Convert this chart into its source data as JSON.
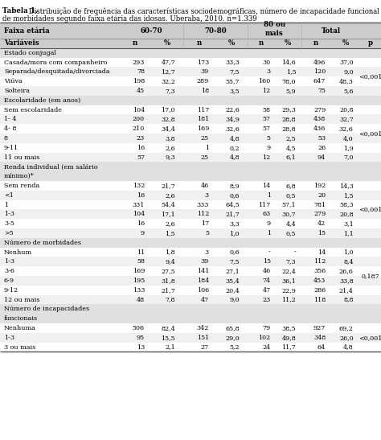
{
  "title_bold": "Tabela 1.",
  "title_rest": " Distribuição de frequência das características sociodemográficas, número de incapacidade funcional e\nde morbidades segundo faixa etária das idosas. Uberaba, 2010. n=1.339",
  "col_headers_row1": [
    "Faixa etária",
    "60-70",
    "70-80",
    "80 ou\nmais",
    "Total"
  ],
  "col_headers_row2": [
    "Variáveis",
    "n",
    "%",
    "n",
    "%",
    "n",
    "%",
    "n",
    "%",
    "p"
  ],
  "sections": [
    {
      "label": "Estado conjugal",
      "label_lines": 1,
      "p_value": "<0,001",
      "p_row": 1,
      "rows": [
        [
          "Casada/mora com companheiro",
          "293",
          "47,7",
          "173",
          "33,3",
          "30",
          "14,6",
          "496",
          "37,0"
        ],
        [
          "Separada/desquitada/divorciada",
          "78",
          "12,7",
          "39",
          "7,5",
          "3",
          "1,5",
          "120",
          "9,0"
        ],
        [
          "Viúva",
          "198",
          "32,2",
          "289",
          "55,7",
          "160",
          "78,0",
          "647",
          "48,3"
        ],
        [
          "Solteira",
          "45",
          "7,3",
          "18",
          "3,5",
          "12",
          "5,9",
          "75",
          "5,6"
        ]
      ]
    },
    {
      "label": "Escolaridade (em anos)",
      "label_lines": 1,
      "p_value": "<0,001",
      "p_row": 2,
      "rows": [
        [
          "Sem escolaridade",
          "104",
          "17,0",
          "117",
          "22,6",
          "58",
          "29,3",
          "279",
          "20,8"
        ],
        [
          "1- 4",
          "200",
          "32,8",
          "181",
          "34,9",
          "57",
          "28,8",
          "438",
          "32,7"
        ],
        [
          "4- 8",
          "210",
          "34,4",
          "169",
          "32,6",
          "57",
          "28,8",
          "436",
          "32,6"
        ],
        [
          "8",
          "23",
          "3,8",
          "25",
          "4,8",
          "5",
          "2,5",
          "53",
          "4,0"
        ],
        [
          "9-11",
          "16",
          "2,6",
          "1",
          "0,2",
          "9",
          "4,5",
          "26",
          "1,9"
        ],
        [
          "11 ou mais",
          "57",
          "9,3",
          "25",
          "4,8",
          "12",
          "6,1",
          "94",
          "7,0"
        ]
      ]
    },
    {
      "label": "Renda individual (em salário\nmínimo)*",
      "label_lines": 2,
      "p_value": "<0,001",
      "p_row": 1,
      "rows": [
        [
          "Sem renda",
          "132",
          "21,7",
          "46",
          "8,9",
          "14",
          "6,8",
          "192",
          "14,3"
        ],
        [
          "<1",
          "16",
          "2,6",
          "3",
          "0,6",
          "1",
          "0,5",
          "20",
          "1,5"
        ],
        [
          "1",
          "331",
          "54,4",
          "333",
          "64,5",
          "117",
          "57,1",
          "781",
          "58,3"
        ],
        [
          "1-3",
          "104",
          "17,1",
          "112",
          "21,7",
          "63",
          "30,7",
          "279",
          "20,8"
        ],
        [
          "3-5",
          "16",
          "2,6",
          "17",
          "3,3",
          "9",
          "4,4",
          "42",
          "3,1"
        ],
        [
          ">5",
          "9",
          "1,5",
          "5",
          "1,0",
          "1",
          "0,5",
          "15",
          "1,1"
        ]
      ]
    },
    {
      "label": "Número de morbidades",
      "label_lines": 1,
      "p_value": "0,187",
      "p_row": 2,
      "rows": [
        [
          "Nenhum",
          "11",
          "1,8",
          "3",
          "0,6",
          "-",
          "-",
          "14",
          "1,0"
        ],
        [
          "1-3",
          "58",
          "9,4",
          "39",
          "7,5",
          "15",
          "7,3",
          "112",
          "8,4"
        ],
        [
          "3-6",
          "169",
          "27,5",
          "141",
          "27,1",
          "46",
          "22,4",
          "356",
          "26,6"
        ],
        [
          "6-9",
          "195",
          "31,8",
          "184",
          "35,4",
          "74",
          "36,1",
          "453",
          "33,8"
        ],
        [
          "9-12",
          "133",
          "21,7",
          "106",
          "20,4",
          "47",
          "22,9",
          "286",
          "21,4"
        ],
        [
          "12 ou mais",
          "48",
          "7,8",
          "47",
          "9,0",
          "23",
          "11,2",
          "118",
          "8,8"
        ]
      ]
    },
    {
      "label": "Número de incapacidades\nfuncionais",
      "label_lines": 2,
      "p_value": "<0,001",
      "p_row": 0,
      "rows": [
        [
          "Nenhuma",
          "506",
          "82,4",
          "342",
          "65,8",
          "79",
          "38,5",
          "927",
          "69,2"
        ],
        [
          "1-3",
          "95",
          "15,5",
          "151",
          "29,0",
          "102",
          "49,8",
          "348",
          "26,0"
        ],
        [
          "3 ou mais",
          "13",
          "2,1",
          "27",
          "5,2",
          "24",
          "11,7",
          "64",
          "4,8"
        ]
      ]
    }
  ],
  "bg_header": "#cccccc",
  "bg_section": "#e0e0e0",
  "bg_white": "#ffffff",
  "bg_light": "#f0f0f0",
  "font_size": 5.8,
  "header_font_size": 6.2
}
